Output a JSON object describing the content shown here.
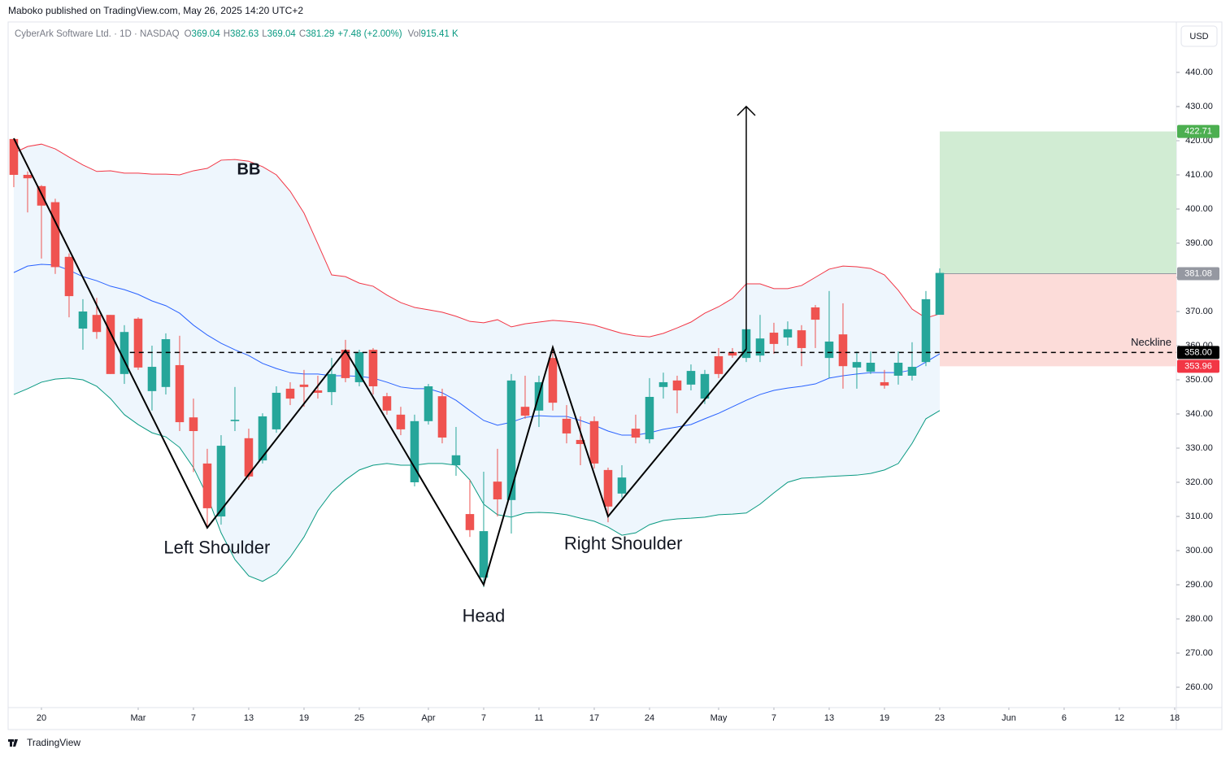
{
  "header": {
    "publisher": "Maboko published on TradingView.com, May 26, 2025 14:20 UTC+2",
    "symbol": "CyberArk Software Ltd. · 1D · NASDAQ",
    "ohlc": [
      {
        "label": "O",
        "value": 369.04
      },
      {
        "label": "H",
        "value": 382.63
      },
      {
        "label": "L",
        "value": 369.04
      },
      {
        "label": "C",
        "value": 381.29
      }
    ],
    "change": "+7.48 (+2.00%)",
    "volume_label": "Vol",
    "volume": "915.41 K",
    "currency": "USD"
  },
  "footer": {
    "brand": "TradingView"
  },
  "chart_data": {
    "type": "candlestick",
    "up_color": "#26a69a",
    "down_color": "#ef5350",
    "ylim": [
      254.05,
      454.76
    ],
    "xlim": [
      -0.41,
      84.12
    ],
    "yticks": [
      {
        "value": 260,
        "label": "260.00"
      },
      {
        "value": 270,
        "label": "270.00"
      },
      {
        "value": 280,
        "label": "280.00"
      },
      {
        "value": 290,
        "label": "290.00"
      },
      {
        "value": 300,
        "label": "300.00"
      },
      {
        "value": 310,
        "label": "310.00"
      },
      {
        "value": 320,
        "label": "320.00"
      },
      {
        "value": 330,
        "label": "330.00"
      },
      {
        "value": 340,
        "label": "340.00"
      },
      {
        "value": 350,
        "label": "350.00"
      },
      {
        "value": 360,
        "label": "360.00"
      },
      {
        "value": 370,
        "label": "370.00"
      },
      {
        "value": 380,
        "label": "380.00"
      },
      {
        "value": 390,
        "label": "390.00"
      },
      {
        "value": 400,
        "label": "400.00"
      },
      {
        "value": 410,
        "label": "410.00"
      },
      {
        "value": 420,
        "label": "420.00"
      },
      {
        "value": 430,
        "label": "430.00"
      },
      {
        "value": 440,
        "label": "440.00"
      }
    ],
    "xticks": [
      {
        "value": 2,
        "label": "20"
      },
      {
        "value": 9,
        "label": "Mar"
      },
      {
        "value": 13,
        "label": "7"
      },
      {
        "value": 17,
        "label": "13"
      },
      {
        "value": 21,
        "label": "19"
      },
      {
        "value": 25,
        "label": "25"
      },
      {
        "value": 30,
        "label": "Apr"
      },
      {
        "value": 34,
        "label": "7"
      },
      {
        "value": 38,
        "label": "11"
      },
      {
        "value": 42,
        "label": "17"
      },
      {
        "value": 46,
        "label": "24"
      },
      {
        "value": 51,
        "label": "May"
      },
      {
        "value": 55,
        "label": "7"
      },
      {
        "value": 59,
        "label": "13"
      },
      {
        "value": 63,
        "label": "19"
      },
      {
        "value": 67,
        "label": "23"
      },
      {
        "value": 72,
        "label": "Jun"
      },
      {
        "value": 76,
        "label": "6"
      },
      {
        "value": 80,
        "label": "12"
      },
      {
        "value": 84,
        "label": "18"
      }
    ],
    "ohlc": [
      [
        420.5,
        420.7,
        406.4,
        410
      ],
      [
        410,
        411,
        399,
        409
      ],
      [
        406.7,
        407,
        385.5,
        401
      ],
      [
        402,
        403,
        381,
        383
      ],
      [
        386,
        387,
        368.3,
        374.5
      ],
      [
        365,
        373.6,
        358.8,
        370
      ],
      [
        369,
        374,
        362,
        364
      ],
      [
        369,
        369,
        351.7,
        351.7
      ],
      [
        351.7,
        366,
        348.8,
        364
      ],
      [
        367.9,
        368.3,
        352.9,
        353.6
      ],
      [
        346.7,
        360,
        341,
        353.8
      ],
      [
        347.9,
        363.6,
        345.7,
        361.9
      ],
      [
        354.3,
        362.9,
        335,
        337.6
      ],
      [
        339,
        344.5,
        323,
        335
      ],
      [
        325.5,
        329.8,
        306.9,
        312.4
      ],
      [
        310,
        333.8,
        307.6,
        330.7
      ],
      [
        337.9,
        347.9,
        335,
        338.3
      ],
      [
        332.9,
        335.7,
        320.7,
        321.7
      ],
      [
        326.4,
        340.2,
        325.5,
        339.3
      ],
      [
        335.5,
        348.1,
        334.5,
        346.2
      ],
      [
        347.4,
        349.3,
        342.6,
        344.5
      ],
      [
        348.6,
        352.9,
        342.1,
        347.9
      ],
      [
        346.9,
        351.2,
        344.5,
        346.2
      ],
      [
        346.4,
        356.4,
        342.6,
        351.7
      ],
      [
        358.8,
        361.7,
        349.3,
        350.5
      ],
      [
        349.3,
        358.8,
        348.1,
        358.1
      ],
      [
        358.8,
        359.3,
        345.7,
        348.1
      ],
      [
        345.2,
        346.2,
        339.8,
        341
      ],
      [
        339.8,
        342.1,
        333.8,
        335.5
      ],
      [
        320,
        339.8,
        318.8,
        337.9
      ],
      [
        337.9,
        348.8,
        336.9,
        348.1
      ],
      [
        345.2,
        347.4,
        331.4,
        333.1
      ],
      [
        325,
        336.2,
        321.9,
        327.9
      ],
      [
        310.7,
        320.7,
        304,
        306
      ],
      [
        292.1,
        323.1,
        289.3,
        305.7
      ],
      [
        320.2,
        329.8,
        310,
        315
      ],
      [
        314.8,
        351.7,
        305,
        349.8
      ],
      [
        342.1,
        351.2,
        338.6,
        339.5
      ],
      [
        341,
        351.2,
        336.2,
        349.3
      ],
      [
        356.4,
        359.3,
        341,
        343.3
      ],
      [
        338.6,
        342.6,
        331.4,
        334.3
      ],
      [
        332.4,
        339.3,
        325,
        331.2
      ],
      [
        337.9,
        339.3,
        324,
        325.5
      ],
      [
        323.6,
        324.3,
        308.3,
        312.9
      ],
      [
        316.7,
        325,
        315.5,
        321.4
      ],
      [
        335.7,
        339.8,
        331.4,
        333.1
      ],
      [
        332.6,
        350.5,
        331.4,
        345
      ],
      [
        347.9,
        352.1,
        344.5,
        349.3
      ],
      [
        349.8,
        351.2,
        340.2,
        346.9
      ],
      [
        348.6,
        354.5,
        346.9,
        352.6
      ],
      [
        344.5,
        352.9,
        342.9,
        351.7
      ],
      [
        356.9,
        359.3,
        350.5,
        351.7
      ],
      [
        358.1,
        359.3,
        356.4,
        357.1
      ],
      [
        356.4,
        367.1,
        355.2,
        364.8
      ],
      [
        357.1,
        369,
        355.2,
        362.1
      ],
      [
        363.8,
        366.7,
        357.6,
        360.5
      ],
      [
        362.4,
        367.1,
        360,
        364.8
      ],
      [
        364.5,
        366,
        354,
        359.3
      ],
      [
        371.2,
        371.9,
        359.3,
        367.6
      ],
      [
        356.4,
        376,
        350.5,
        361.2
      ],
      [
        363.3,
        372.4,
        347.4,
        354
      ],
      [
        353.6,
        358.3,
        347.4,
        355.2
      ],
      [
        352.4,
        358.3,
        351.7,
        355
      ],
      [
        349.3,
        352.9,
        347.4,
        348.3
      ],
      [
        351.2,
        358.3,
        348.6,
        355
      ],
      [
        351.2,
        361,
        349.8,
        353.8
      ],
      [
        355.2,
        376,
        354,
        373.6
      ],
      [
        369.04,
        382.63,
        369.04,
        381.29
      ]
    ],
    "bb": {
      "label": "BB",
      "upper_color": "#f23645",
      "middle_color": "#2962ff",
      "lower_color": "#089981",
      "fill": "#eaf4fc",
      "upper": [
        416.4,
        418.3,
        419,
        417.6,
        415.2,
        412.9,
        411,
        411.2,
        410.5,
        410.5,
        410.2,
        410.2,
        410,
        411.2,
        411.9,
        414.3,
        414.5,
        414,
        412.4,
        410,
        405.2,
        398.8,
        389.8,
        380.7,
        380.2,
        378.3,
        377.4,
        374.8,
        372.6,
        371.2,
        370.5,
        369.8,
        368.6,
        367.1,
        366.7,
        367.6,
        365.5,
        366.4,
        366.9,
        367.4,
        367.1,
        366.7,
        366,
        364.8,
        363.6,
        362.9,
        362.6,
        363.6,
        365.2,
        366.9,
        369.5,
        371.4,
        373.8,
        378.1,
        378.1,
        376.7,
        376.7,
        377.6,
        380,
        382.4,
        383.3,
        383.1,
        382.6,
        380.7,
        376.2,
        370.7,
        368.1,
        369.3
      ],
      "middle": [
        381.4,
        383.3,
        383.8,
        383.6,
        382.1,
        380.2,
        379,
        377.4,
        376.4,
        375,
        373.1,
        371.7,
        369.5,
        366,
        363.1,
        360.7,
        358.8,
        357.1,
        354.8,
        353.3,
        352.1,
        351.7,
        351.7,
        351.2,
        351.2,
        351,
        350.5,
        349.3,
        347.9,
        347.4,
        347.4,
        346.2,
        344,
        341,
        338.1,
        336.7,
        337.6,
        339,
        339.5,
        339.3,
        339.3,
        338.1,
        336.7,
        335,
        333.8,
        333.8,
        334.5,
        335.5,
        336.2,
        336.9,
        338.6,
        340.2,
        342.1,
        344,
        345.7,
        346.9,
        347.6,
        348.1,
        348.8,
        350.5,
        351.2,
        351.7,
        352.1,
        352.1,
        352.1,
        352.9,
        355.2,
        357.6
      ],
      "lower": [
        345.7,
        347.4,
        349.3,
        350.2,
        350.5,
        350,
        348.1,
        344.5,
        339.8,
        336.9,
        334.5,
        333.3,
        330.2,
        324.3,
        316,
        305.2,
        297.4,
        292.6,
        291,
        293.3,
        298.1,
        304,
        311.7,
        317.1,
        320.7,
        323.6,
        325,
        325.5,
        325,
        325,
        325.5,
        325.5,
        325,
        320.7,
        313.6,
        310.5,
        309.8,
        311,
        311.2,
        311,
        310.5,
        309.5,
        308.6,
        306.9,
        304.5,
        305.2,
        307.6,
        308.8,
        309.3,
        309.5,
        309.8,
        310.5,
        310.7,
        311,
        313.6,
        316.9,
        320,
        321.2,
        321.4,
        321.7,
        321.9,
        322.1,
        322.6,
        323.6,
        325.5,
        331.4,
        338.6,
        341
      ]
    },
    "pattern": {
      "x": [
        0,
        14,
        24,
        34,
        39,
        43,
        53
      ],
      "y": [
        420.7,
        306.7,
        358.6,
        290,
        359.5,
        310,
        359
      ]
    },
    "annotations": [
      {
        "text": "Left Shoulder",
        "x": 14.7,
        "y": 300.5
      },
      {
        "text": "Head",
        "x": 34,
        "y": 280.5
      },
      {
        "text": "Right Shoulder",
        "x": 44.1,
        "y": 301.7
      }
    ],
    "bb_label_at": {
      "x": 17,
      "y": 411.4
    },
    "arrow": {
      "x": 53,
      "from": 359,
      "to": 430
    },
    "neckline": {
      "value": 358,
      "tag": "358.00",
      "label": "Neckline",
      "start": 8.4
    },
    "position": {
      "start": 67,
      "entry": 381.08,
      "entry_tag": "381.08",
      "target": 422.71,
      "target_tag": "422.71",
      "stop": 353.96,
      "stop_tag": "353.96"
    }
  }
}
